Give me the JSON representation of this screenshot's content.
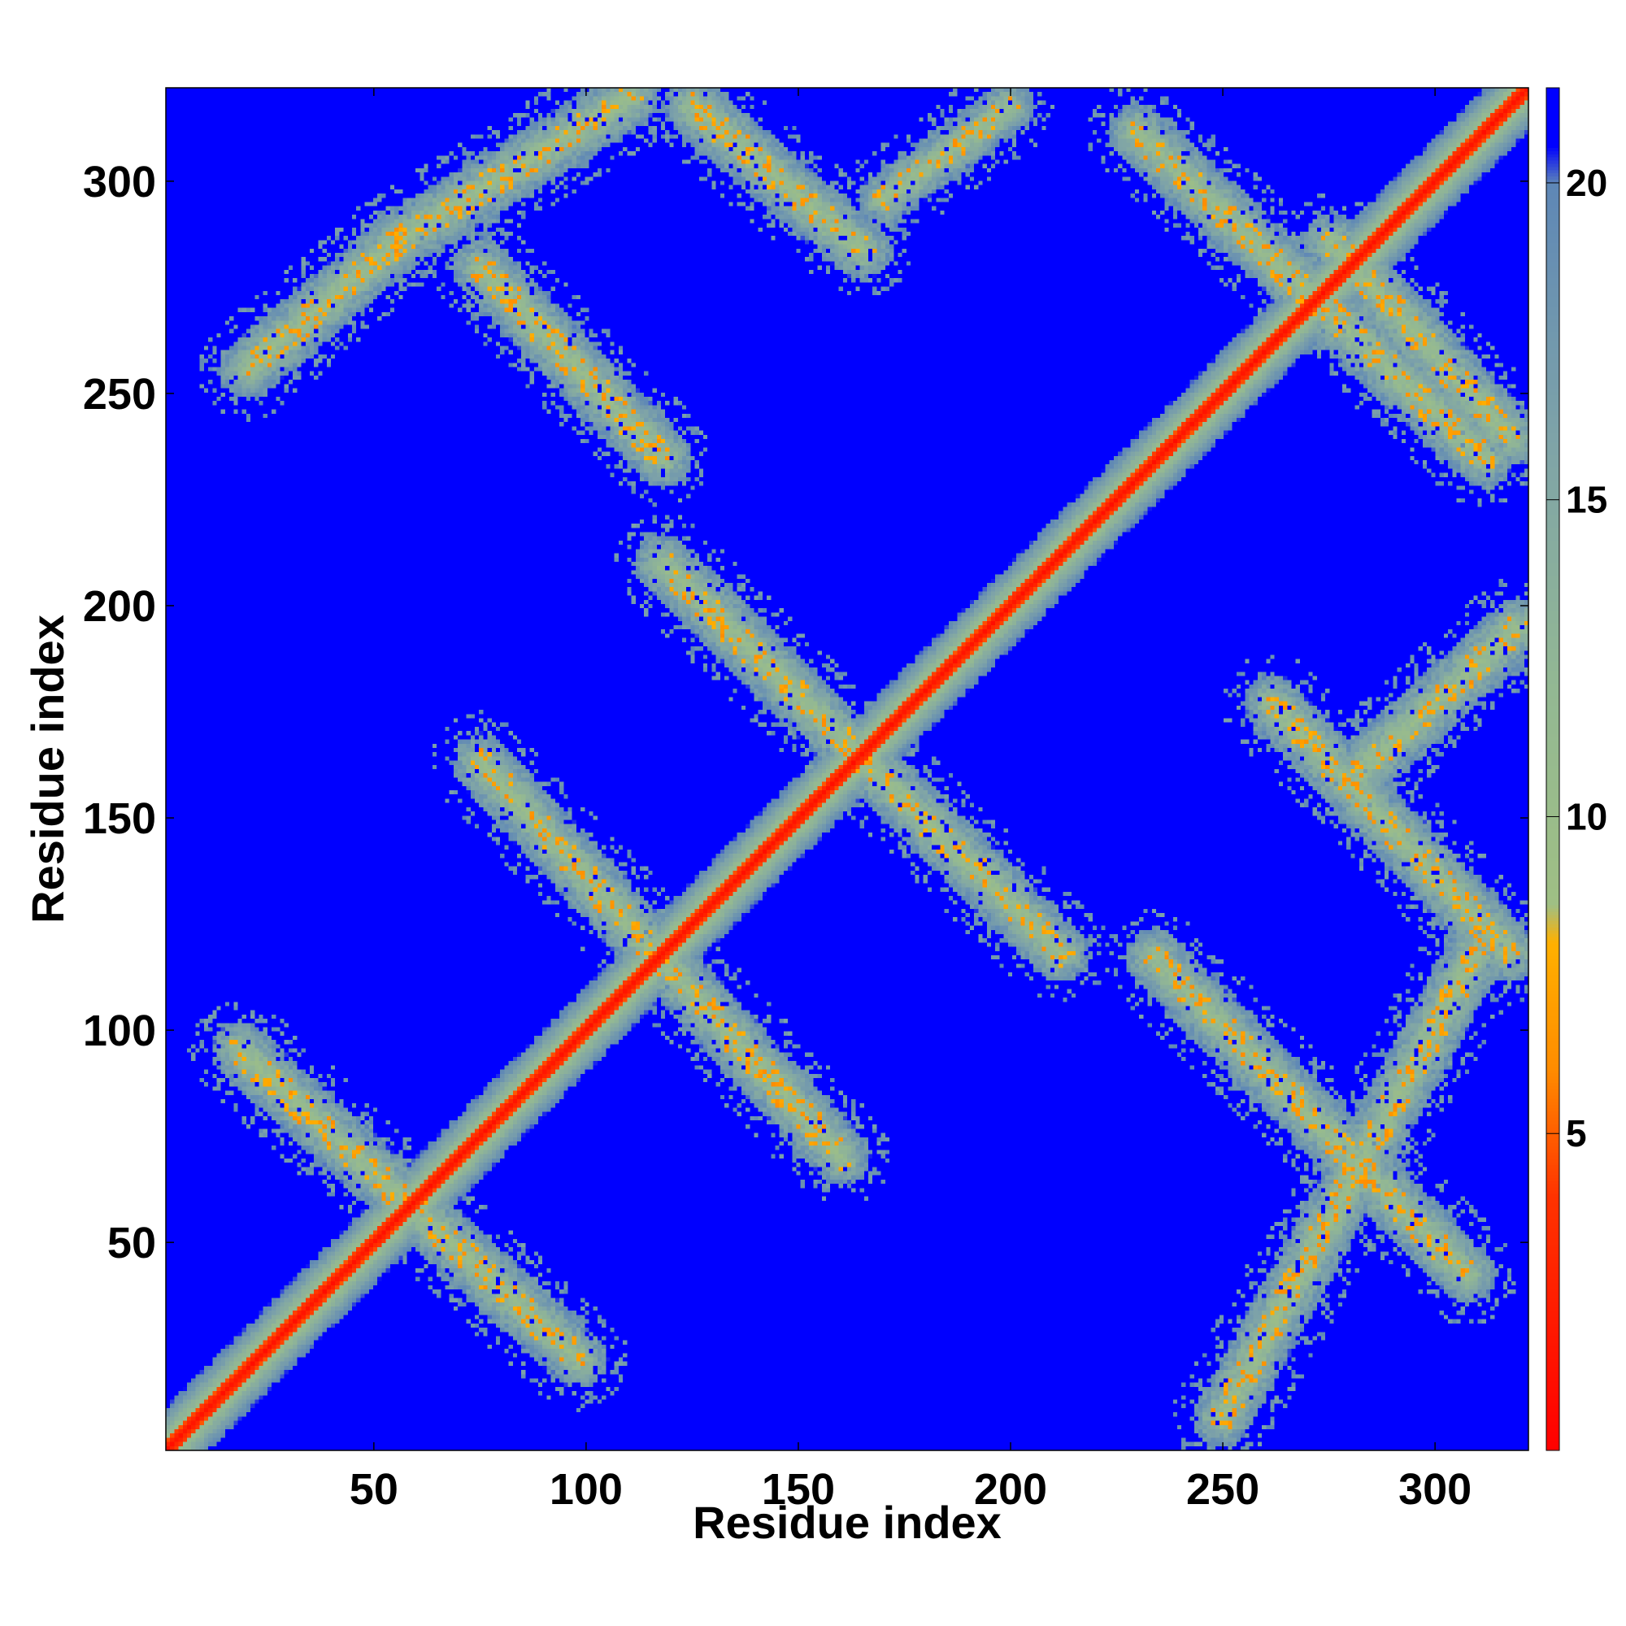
{
  "chart_data": {
    "type": "heatmap",
    "title": "",
    "xlabel": "Residue index",
    "ylabel": "Residue index",
    "xlim": [
      1,
      322
    ],
    "ylim": [
      1,
      322
    ],
    "x_ticks": [
      50,
      100,
      150,
      200,
      250,
      300
    ],
    "y_ticks": [
      50,
      100,
      150,
      200,
      250,
      300
    ],
    "value_range": [
      0,
      21.5
    ],
    "colorbar_ticks": [
      5,
      10,
      15,
      20
    ],
    "colorbar_stops": [
      {
        "value": 0,
        "color": "#ff0000"
      },
      {
        "value": 4,
        "color": "#ff3300"
      },
      {
        "value": 6,
        "color": "#ff8c00"
      },
      {
        "value": 8,
        "color": "#ffb000"
      },
      {
        "value": 8.6,
        "color": "#9fbf84"
      },
      {
        "value": 12,
        "color": "#93b893"
      },
      {
        "value": 16,
        "color": "#7ea3a8"
      },
      {
        "value": 20,
        "color": "#5e87b6"
      },
      {
        "value": 20.6,
        "color": "#0000ff"
      },
      {
        "value": 21.5,
        "color": "#0000ff"
      }
    ],
    "background_value": 21,
    "background_color": "#0000ff",
    "diagonal": {
      "core_value": 1,
      "inner_halfwidth": 2,
      "outer_halfwidth": 10
    },
    "contact_bands": [
      {
        "from": [
          18,
          95
        ],
        "to": [
          98,
          22
        ],
        "halfwidth": 7
      },
      {
        "from": [
          75,
          163
        ],
        "to": [
          160,
          70
        ],
        "halfwidth": 7
      },
      {
        "from": [
          118,
          210
        ],
        "to": [
          212,
          118
        ],
        "halfwidth": 7
      },
      {
        "from": [
          234,
          117
        ],
        "to": [
          308,
          42
        ],
        "halfwidth": 7
      },
      {
        "from": [
          250,
          8
        ],
        "to": [
          310,
          118
        ],
        "halfwidth": 7
      },
      {
        "from": [
          262,
          177
        ],
        "to": [
          318,
          118
        ],
        "halfwidth": 7
      },
      {
        "from": [
          282,
          160
        ],
        "to": [
          320,
          195
        ],
        "halfwidth": 7
      },
      {
        "from": [
          20,
          256
        ],
        "to": [
          55,
          286
        ],
        "halfwidth": 7
      },
      {
        "from": [
          55,
          286
        ],
        "to": [
          110,
          320
        ],
        "halfwidth": 7
      },
      {
        "from": [
          75,
          280
        ],
        "to": [
          118,
          235
        ],
        "halfwidth": 7
      },
      {
        "from": [
          125,
          318
        ],
        "to": [
          165,
          284
        ],
        "halfwidth": 7
      },
      {
        "from": [
          170,
          296
        ],
        "to": [
          200,
          318
        ],
        "halfwidth": 6
      },
      {
        "from": [
          230,
          312
        ],
        "to": [
          312,
          235
        ],
        "halfwidth": 7
      },
      {
        "from": [
          276,
          286
        ],
        "to": [
          318,
          240
        ],
        "halfwidth": 7
      }
    ]
  }
}
